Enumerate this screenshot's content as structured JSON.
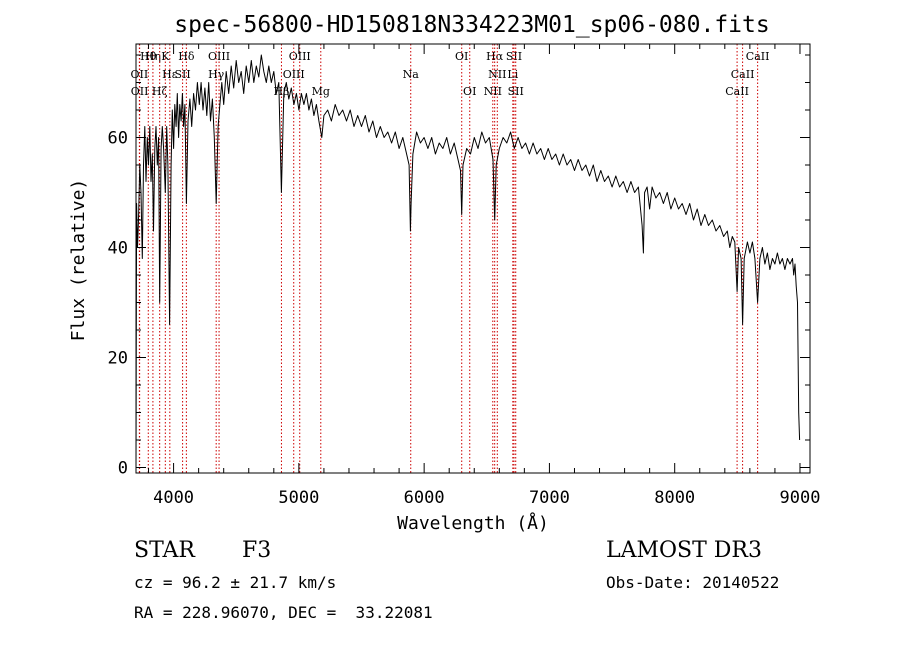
{
  "chart_data": {
    "type": "line",
    "title": "spec-56800-HD150818N334223M01_sp06-080.fits",
    "xlabel": "Wavelength (Å)",
    "ylabel": "Flux (relative)",
    "xlim": [
      3700,
      9080
    ],
    "ylim": [
      -1,
      77
    ],
    "xticks": [
      4000,
      5000,
      6000,
      7000,
      8000,
      9000
    ],
    "yticks": [
      0,
      20,
      40,
      60
    ],
    "x_minor_step": 200,
    "y_minor_step": 5,
    "grid": false,
    "series": [
      {
        "name": "spectrum",
        "color": "#000000",
        "points": [
          [
            3700,
            0
          ],
          [
            3705,
            48
          ],
          [
            3712,
            40
          ],
          [
            3720,
            45
          ],
          [
            3730,
            55
          ],
          [
            3740,
            50
          ],
          [
            3750,
            38
          ],
          [
            3760,
            55
          ],
          [
            3770,
            62
          ],
          [
            3780,
            52
          ],
          [
            3790,
            60
          ],
          [
            3800,
            55
          ],
          [
            3810,
            62
          ],
          [
            3820,
            52
          ],
          [
            3830,
            57
          ],
          [
            3840,
            43
          ],
          [
            3850,
            58
          ],
          [
            3860,
            62
          ],
          [
            3870,
            55
          ],
          [
            3880,
            60
          ],
          [
            3889,
            30
          ],
          [
            3900,
            58
          ],
          [
            3910,
            62
          ],
          [
            3920,
            58
          ],
          [
            3934,
            50
          ],
          [
            3945,
            62
          ],
          [
            3955,
            55
          ],
          [
            3968,
            26
          ],
          [
            3980,
            55
          ],
          [
            3990,
            65
          ],
          [
            4000,
            58
          ],
          [
            4010,
            66
          ],
          [
            4020,
            62
          ],
          [
            4030,
            68
          ],
          [
            4040,
            60
          ],
          [
            4050,
            66
          ],
          [
            4060,
            63
          ],
          [
            4070,
            68
          ],
          [
            4080,
            62
          ],
          [
            4090,
            66
          ],
          [
            4102,
            48
          ],
          [
            4115,
            63
          ],
          [
            4130,
            67
          ],
          [
            4145,
            62
          ],
          [
            4160,
            68
          ],
          [
            4175,
            65
          ],
          [
            4190,
            70
          ],
          [
            4205,
            66
          ],
          [
            4220,
            70
          ],
          [
            4235,
            65
          ],
          [
            4250,
            69
          ],
          [
            4265,
            64
          ],
          [
            4280,
            70
          ],
          [
            4295,
            63
          ],
          [
            4310,
            67
          ],
          [
            4325,
            60
          ],
          [
            4340,
            48
          ],
          [
            4355,
            62
          ],
          [
            4370,
            66
          ],
          [
            4385,
            70
          ],
          [
            4400,
            66
          ],
          [
            4420,
            72
          ],
          [
            4440,
            68
          ],
          [
            4460,
            73
          ],
          [
            4480,
            69
          ],
          [
            4500,
            74
          ],
          [
            4520,
            70
          ],
          [
            4540,
            72
          ],
          [
            4560,
            68
          ],
          [
            4580,
            73
          ],
          [
            4600,
            70
          ],
          [
            4620,
            74
          ],
          [
            4640,
            70
          ],
          [
            4660,
            73
          ],
          [
            4680,
            71
          ],
          [
            4700,
            75
          ],
          [
            4720,
            72
          ],
          [
            4740,
            70
          ],
          [
            4760,
            73
          ],
          [
            4780,
            70
          ],
          [
            4800,
            72
          ],
          [
            4820,
            68
          ],
          [
            4840,
            70
          ],
          [
            4861,
            50
          ],
          [
            4880,
            68
          ],
          [
            4900,
            70
          ],
          [
            4920,
            67
          ],
          [
            4940,
            69
          ],
          [
            4960,
            66
          ],
          [
            4980,
            68
          ],
          [
            5000,
            65
          ],
          [
            5020,
            68
          ],
          [
            5040,
            66
          ],
          [
            5060,
            68
          ],
          [
            5080,
            65
          ],
          [
            5100,
            67
          ],
          [
            5120,
            64
          ],
          [
            5140,
            66
          ],
          [
            5160,
            63
          ],
          [
            5183,
            60
          ],
          [
            5200,
            64
          ],
          [
            5230,
            65
          ],
          [
            5260,
            63
          ],
          [
            5290,
            66
          ],
          [
            5320,
            64
          ],
          [
            5350,
            65
          ],
          [
            5380,
            63
          ],
          [
            5410,
            65
          ],
          [
            5440,
            62
          ],
          [
            5470,
            64
          ],
          [
            5500,
            62
          ],
          [
            5530,
            64
          ],
          [
            5560,
            61
          ],
          [
            5590,
            63
          ],
          [
            5620,
            60
          ],
          [
            5650,
            62
          ],
          [
            5680,
            60
          ],
          [
            5710,
            61
          ],
          [
            5740,
            59
          ],
          [
            5770,
            61
          ],
          [
            5800,
            58
          ],
          [
            5830,
            60
          ],
          [
            5860,
            57
          ],
          [
            5880,
            55
          ],
          [
            5890,
            43
          ],
          [
            5896,
            48
          ],
          [
            5910,
            57
          ],
          [
            5940,
            61
          ],
          [
            5970,
            59
          ],
          [
            6000,
            60
          ],
          [
            6030,
            58
          ],
          [
            6060,
            60
          ],
          [
            6090,
            57
          ],
          [
            6120,
            59
          ],
          [
            6150,
            58
          ],
          [
            6180,
            60
          ],
          [
            6210,
            57
          ],
          [
            6240,
            59
          ],
          [
            6270,
            56
          ],
          [
            6290,
            54
          ],
          [
            6300,
            46
          ],
          [
            6310,
            55
          ],
          [
            6340,
            58
          ],
          [
            6370,
            57
          ],
          [
            6400,
            60
          ],
          [
            6430,
            58
          ],
          [
            6460,
            61
          ],
          [
            6490,
            59
          ],
          [
            6520,
            60
          ],
          [
            6550,
            56
          ],
          [
            6563,
            45
          ],
          [
            6575,
            55
          ],
          [
            6600,
            58
          ],
          [
            6630,
            60
          ],
          [
            6660,
            59
          ],
          [
            6690,
            61
          ],
          [
            6720,
            58
          ],
          [
            6750,
            60
          ],
          [
            6780,
            58
          ],
          [
            6810,
            59
          ],
          [
            6840,
            57
          ],
          [
            6870,
            59
          ],
          [
            6900,
            57
          ],
          [
            6930,
            58
          ],
          [
            6960,
            56
          ],
          [
            6990,
            58
          ],
          [
            7020,
            56
          ],
          [
            7050,
            57
          ],
          [
            7080,
            55
          ],
          [
            7110,
            57
          ],
          [
            7140,
            55
          ],
          [
            7170,
            56
          ],
          [
            7200,
            54
          ],
          [
            7230,
            56
          ],
          [
            7260,
            54
          ],
          [
            7290,
            55
          ],
          [
            7320,
            53
          ],
          [
            7350,
            55
          ],
          [
            7380,
            52
          ],
          [
            7410,
            54
          ],
          [
            7440,
            52
          ],
          [
            7470,
            53
          ],
          [
            7500,
            51
          ],
          [
            7530,
            53
          ],
          [
            7560,
            51
          ],
          [
            7590,
            52
          ],
          [
            7620,
            50
          ],
          [
            7650,
            52
          ],
          [
            7680,
            50
          ],
          [
            7710,
            51
          ],
          [
            7740,
            44
          ],
          [
            7750,
            39
          ],
          [
            7760,
            50
          ],
          [
            7780,
            51
          ],
          [
            7800,
            47
          ],
          [
            7820,
            51
          ],
          [
            7850,
            49
          ],
          [
            7880,
            50
          ],
          [
            7910,
            48
          ],
          [
            7940,
            50
          ],
          [
            7970,
            47
          ],
          [
            8000,
            49
          ],
          [
            8030,
            47
          ],
          [
            8060,
            48
          ],
          [
            8090,
            46
          ],
          [
            8120,
            48
          ],
          [
            8150,
            45
          ],
          [
            8180,
            47
          ],
          [
            8210,
            44
          ],
          [
            8240,
            46
          ],
          [
            8270,
            44
          ],
          [
            8300,
            45
          ],
          [
            8330,
            43
          ],
          [
            8360,
            44
          ],
          [
            8390,
            42
          ],
          [
            8420,
            43
          ],
          [
            8440,
            40
          ],
          [
            8460,
            42
          ],
          [
            8480,
            41
          ],
          [
            8498,
            32
          ],
          [
            8510,
            40
          ],
          [
            8530,
            38
          ],
          [
            8542,
            26
          ],
          [
            8555,
            38
          ],
          [
            8580,
            41
          ],
          [
            8600,
            39
          ],
          [
            8620,
            41
          ],
          [
            8640,
            38
          ],
          [
            8662,
            30
          ],
          [
            8680,
            38
          ],
          [
            8700,
            40
          ],
          [
            8720,
            37
          ],
          [
            8740,
            39
          ],
          [
            8760,
            36
          ],
          [
            8780,
            38
          ],
          [
            8800,
            37
          ],
          [
            8820,
            39
          ],
          [
            8840,
            37
          ],
          [
            8860,
            38
          ],
          [
            8880,
            36
          ],
          [
            8900,
            38
          ],
          [
            8920,
            37
          ],
          [
            8940,
            38
          ],
          [
            8950,
            35
          ],
          [
            8960,
            37
          ],
          [
            8970,
            33
          ],
          [
            8980,
            30
          ],
          [
            8990,
            10
          ],
          [
            8997,
            5
          ]
        ]
      }
    ],
    "line_annotations": [
      {
        "label": "Hθ",
        "wavelength": 3798,
        "row": 0
      },
      {
        "label": "Hη",
        "wavelength": 3835,
        "row": 0
      },
      {
        "label": "K",
        "wavelength": 3934,
        "row": 0
      },
      {
        "label": "Hδ",
        "wavelength": 4102,
        "row": 0
      },
      {
        "label": "OIII",
        "wavelength": 4363,
        "row": 0
      },
      {
        "label": "OIII",
        "wavelength": 5007,
        "row": 0
      },
      {
        "label": "OI",
        "wavelength": 6300,
        "row": 0
      },
      {
        "label": "Hα",
        "wavelength": 6563,
        "row": 0
      },
      {
        "label": "SII",
        "wavelength": 6717,
        "row": 0
      },
      {
        "label": "CaII",
        "wavelength": 8662,
        "row": 0
      },
      {
        "label": "OII",
        "wavelength": 3727,
        "row": 1
      },
      {
        "label": "Hε",
        "wavelength": 3970,
        "row": 1
      },
      {
        "label": "SII",
        "wavelength": 4072,
        "row": 1
      },
      {
        "label": "Hγ",
        "wavelength": 4340,
        "row": 1
      },
      {
        "label": "OIII",
        "wavelength": 4959,
        "row": 1
      },
      {
        "label": "Na",
        "wavelength": 5893,
        "row": 1
      },
      {
        "label": "NII",
        "wavelength": 6584,
        "row": 1
      },
      {
        "label": "Li",
        "wavelength": 6708,
        "row": 1
      },
      {
        "label": "CaII",
        "wavelength": 8542,
        "row": 1
      },
      {
        "label": "OII",
        "wavelength": 3729,
        "row": 2
      },
      {
        "label": "Hζ",
        "wavelength": 3889,
        "row": 2
      },
      {
        "label": "Hβ",
        "wavelength": 4861,
        "row": 2
      },
      {
        "label": "Mg",
        "wavelength": 5175,
        "row": 2
      },
      {
        "label": "OI",
        "wavelength": 6364,
        "row": 2
      },
      {
        "label": "NII",
        "wavelength": 6548,
        "row": 2
      },
      {
        "label": "SII",
        "wavelength": 6731,
        "row": 2
      },
      {
        "label": "CaII",
        "wavelength": 8498,
        "row": 2
      }
    ],
    "annotation_line_color": "#cc0000"
  },
  "info": {
    "object_type": "STAR",
    "subclass": "F3",
    "survey": "LAMOST DR3",
    "cz": "cz = 96.2 ± 21.7 km/s",
    "obs_date": "Obs-Date: 20140522",
    "coords": "RA = 228.96070, DEC =  33.22081"
  }
}
